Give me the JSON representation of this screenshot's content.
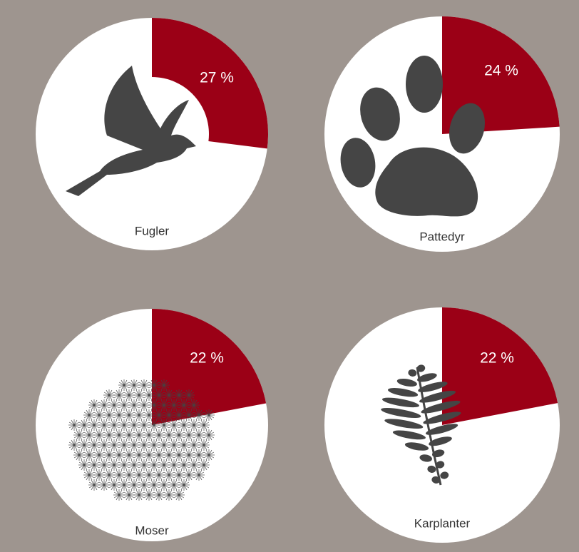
{
  "chart_data": [
    {
      "type": "pie",
      "title": "Fugler",
      "values": [
        27
      ],
      "value_labels": [
        "27 %"
      ],
      "color": "#9b0016"
    },
    {
      "type": "pie",
      "title": "Pattedyr",
      "values": [
        24
      ],
      "value_labels": [
        "24 %"
      ],
      "color": "#9b0016"
    },
    {
      "type": "pie",
      "title": "Moser",
      "values": [
        22
      ],
      "value_labels": [
        "22 %"
      ],
      "color": "#9b0016"
    },
    {
      "type": "pie",
      "title": "Karplanter",
      "values": [
        22
      ],
      "value_labels": [
        "22 %"
      ],
      "color": "#9b0016"
    }
  ]
}
